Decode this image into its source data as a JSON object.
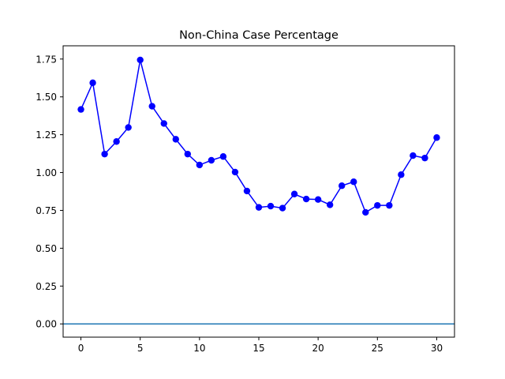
{
  "chart_data": {
    "type": "line",
    "title": "Non-China Case Percentage",
    "xlabel": "",
    "ylabel": "",
    "xlim": [
      -1.5,
      31.5
    ],
    "ylim": [
      -0.0875,
      1.8375
    ],
    "xticks": [
      0,
      5,
      10,
      15,
      20,
      25,
      30
    ],
    "yticks": [
      0.0,
      0.25,
      0.5,
      0.75,
      1.0,
      1.25,
      1.5,
      1.75
    ],
    "xtick_labels": [
      "0",
      "5",
      "10",
      "15",
      "20",
      "25",
      "30"
    ],
    "ytick_labels": [
      "0.00",
      "0.25",
      "0.50",
      "0.75",
      "1.00",
      "1.25",
      "1.50",
      "1.75"
    ],
    "grid": false,
    "series": [
      {
        "marker": "circle",
        "color": "#0000ff",
        "x": [
          0,
          1,
          2,
          3,
          4,
          5,
          6,
          7,
          8,
          9,
          10,
          11,
          12,
          13,
          14,
          15,
          16,
          17,
          18,
          19,
          20,
          21,
          22,
          23,
          24,
          25,
          26,
          27,
          28,
          29,
          30
        ],
        "values": [
          1.417,
          1.593,
          1.122,
          1.205,
          1.298,
          1.744,
          1.438,
          1.324,
          1.22,
          1.122,
          1.05,
          1.081,
          1.106,
          1.003,
          0.878,
          0.77,
          0.778,
          0.765,
          0.858,
          0.825,
          0.822,
          0.787,
          0.913,
          0.939,
          0.737,
          0.783,
          0.783,
          0.986,
          1.112,
          1.096,
          1.231
        ]
      }
    ],
    "reference_lines": [
      {
        "y": 0.0,
        "color": "#1f77b4"
      }
    ]
  }
}
